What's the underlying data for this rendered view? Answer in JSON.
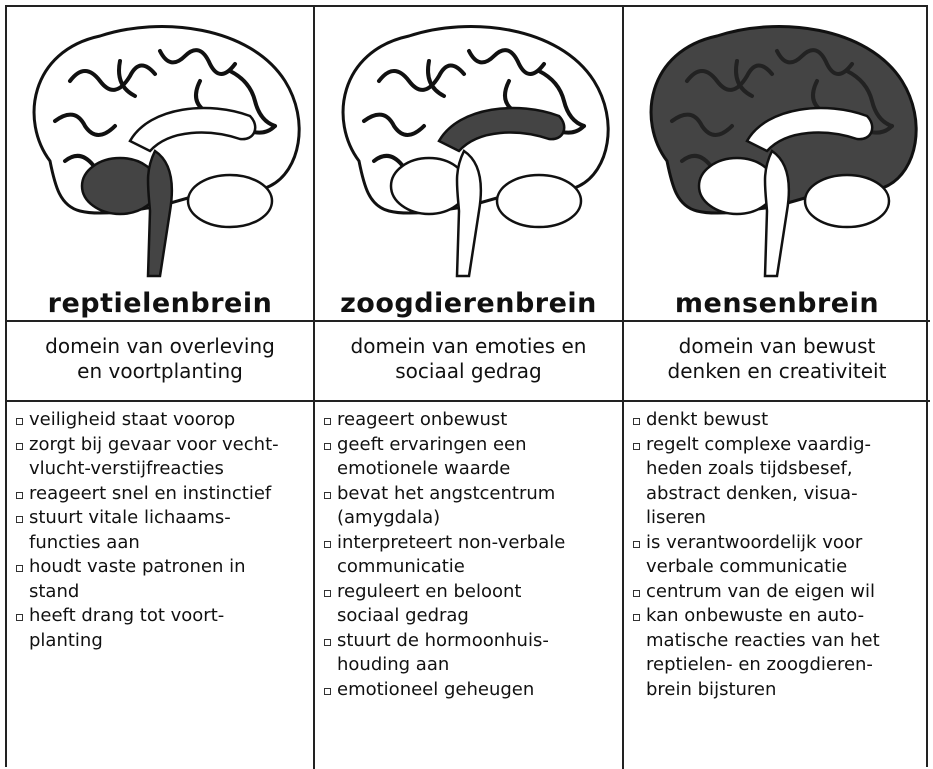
{
  "columns": [
    {
      "title": "reptielenbrein",
      "subtitle": [
        "domein van overleving",
        "en voortplanting"
      ],
      "items": [
        [
          "veiligheid staat voorop"
        ],
        [
          "zorgt bij gevaar voor vecht-",
          "vlucht-verstijfreacties"
        ],
        [
          "reageert snel en instinctief"
        ],
        [
          "stuurt vitale lichaams-",
          "functies aan"
        ],
        [
          "houdt vaste patronen in",
          "stand"
        ],
        [
          "heeft drang tot voort-",
          "planting"
        ]
      ]
    },
    {
      "title": "zoogdierenbrein",
      "subtitle": [
        "domein van emoties en",
        "sociaal gedrag"
      ],
      "items": [
        [
          "reageert onbewust"
        ],
        [
          "geeft ervaringen een",
          "emotionele waarde"
        ],
        [
          "bevat het angstcentrum",
          "(amygdala)"
        ],
        [
          "interpreteert non-verbale",
          "communicatie"
        ],
        [
          "reguleert en beloont",
          "sociaal gedrag"
        ],
        [
          "stuurt de hormoonhuis-",
          "houding aan"
        ],
        [
          "emotioneel geheugen"
        ]
      ]
    },
    {
      "title": "mensenbrein",
      "subtitle": [
        "domein van bewust",
        "denken en creativiteit"
      ],
      "items": [
        [
          "denkt bewust"
        ],
        [
          "regelt complexe vaardig-",
          "heden zoals tijdsbesef,",
          "abstract denken, visua-",
          "liseren"
        ],
        [
          "is verantwoordelijk voor",
          "verbale communicatie"
        ],
        [
          "centrum van de eigen wil"
        ],
        [
          "kan onbewuste en auto-",
          "matische reacties van het",
          "reptielen- en zoogdieren-",
          "brein bijsturen"
        ]
      ]
    }
  ]
}
